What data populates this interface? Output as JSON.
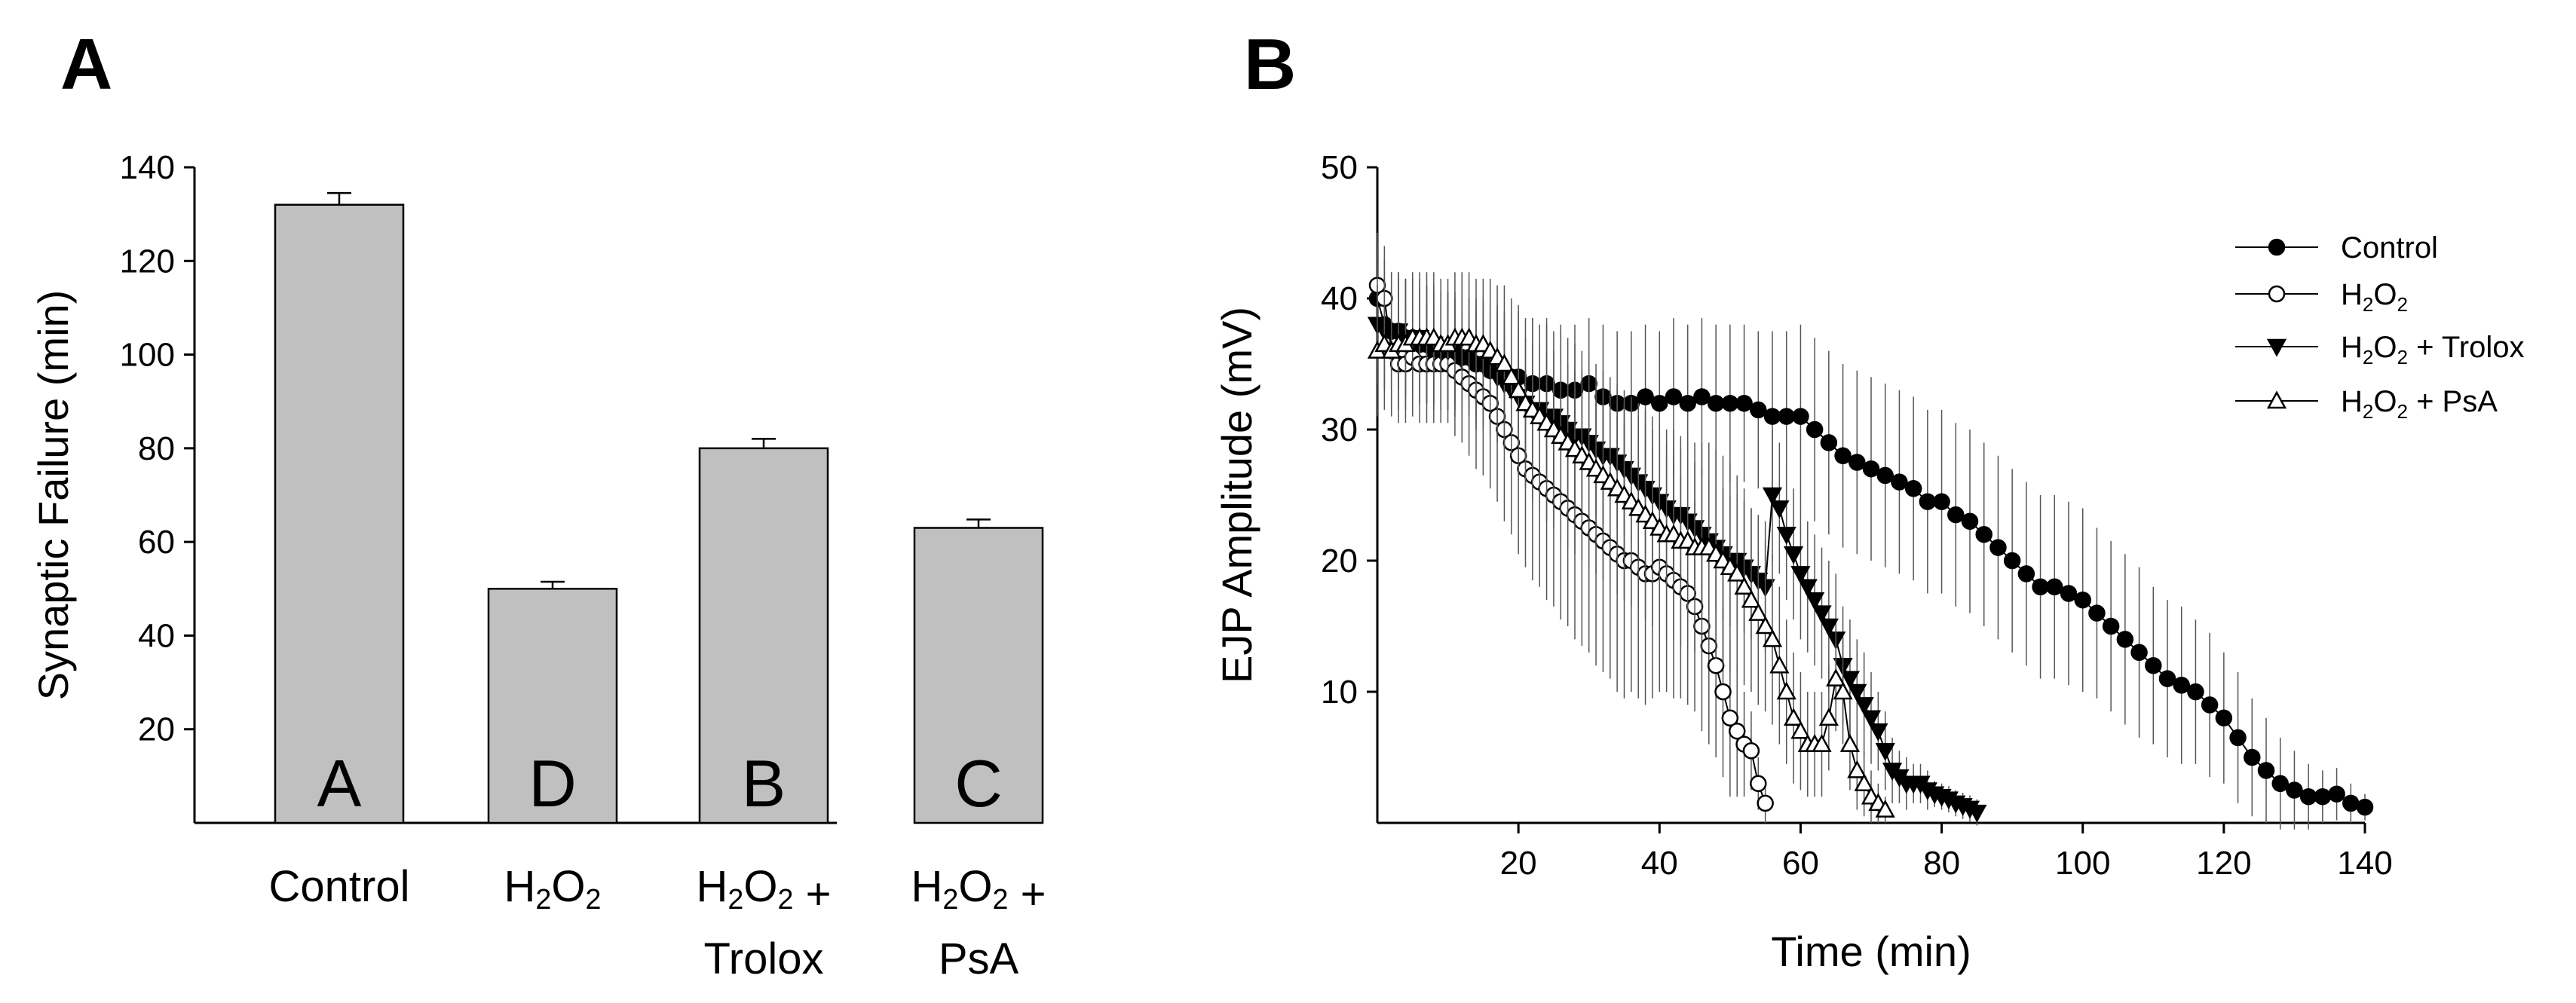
{
  "colors": {
    "bar_fill": "#c0c0c0",
    "ink": "#000000",
    "open_marker_fill": "#ffffff"
  },
  "panels": {
    "a": "A",
    "b": "B"
  },
  "chart_data": [
    {
      "type": "bar",
      "panel": "A",
      "ylabel": "Synaptic Failure (min)",
      "xlabel": "",
      "ylim": [
        0,
        140
      ],
      "yticks": [
        20,
        40,
        60,
        80,
        100,
        120,
        140
      ],
      "categories": [
        {
          "line1": "Control",
          "line2": "",
          "sig": "A",
          "value": 132,
          "error": 2.5
        },
        {
          "line1": "H2O2",
          "line2": "",
          "sig": "D",
          "value": 50,
          "error": 1.5
        },
        {
          "line1": "H2O2 +",
          "line2": "Trolox",
          "sig": "B",
          "value": 80,
          "error": 2
        },
        {
          "line1": "H2O2 +",
          "line2": "PsA",
          "sig": "C",
          "value": 63,
          "error": 1.8
        }
      ]
    },
    {
      "type": "line",
      "panel": "B",
      "xlabel": "Time (min)",
      "ylabel": "EJP Amplitude (mV)",
      "xlim": [
        0,
        140
      ],
      "ylim": [
        0,
        50
      ],
      "xticks": [
        20,
        40,
        60,
        80,
        100,
        120,
        140
      ],
      "yticks": [
        10,
        20,
        30,
        40,
        50
      ],
      "series": [
        {
          "name": "Control",
          "marker": "circle-filled",
          "x": [
            0,
            1,
            2,
            3,
            4,
            5,
            6,
            7,
            8,
            9,
            10,
            11,
            12,
            13,
            14,
            15,
            16,
            17,
            18,
            19,
            20,
            22,
            24,
            26,
            28,
            30,
            32,
            34,
            36,
            38,
            40,
            42,
            44,
            46,
            48,
            50,
            52,
            54,
            56,
            58,
            60,
            62,
            64,
            66,
            68,
            70,
            72,
            74,
            76,
            78,
            80,
            82,
            84,
            86,
            88,
            90,
            92,
            94,
            96,
            98,
            100,
            102,
            104,
            106,
            108,
            110,
            112,
            114,
            116,
            118,
            120,
            122,
            124,
            126,
            128,
            130,
            132,
            134,
            136,
            138,
            140
          ],
          "y": [
            40,
            38,
            37.5,
            37.5,
            37,
            37,
            36.5,
            36.5,
            36,
            36,
            36,
            35.5,
            35.5,
            35.5,
            35,
            35,
            34.5,
            34.5,
            34,
            34,
            34,
            33.5,
            33.5,
            33,
            33,
            33.5,
            32.5,
            32,
            32,
            32.5,
            32,
            32.5,
            32,
            32.5,
            32,
            32,
            32,
            31.5,
            31,
            31,
            31,
            30,
            29,
            28,
            27.5,
            27,
            26.5,
            26,
            25.5,
            24.5,
            24.5,
            23.5,
            23,
            22,
            21,
            20,
            19,
            18,
            18,
            17.5,
            17,
            16,
            15,
            14,
            13,
            12,
            11,
            10.5,
            10,
            9,
            8,
            6.5,
            5,
            4,
            3,
            2.5,
            2,
            2,
            2.2,
            1.5,
            1.2
          ],
          "err": [
            5,
            5,
            4.5,
            4.5,
            4.5,
            4.5,
            4.5,
            4.5,
            4.5,
            4.5,
            4.5,
            4.5,
            4.5,
            4.5,
            4.5,
            4.5,
            5,
            5,
            5,
            5,
            5,
            5,
            5,
            5,
            5,
            5,
            5.5,
            5.5,
            5.5,
            5.5,
            5.5,
            6,
            6,
            6,
            6,
            6,
            6,
            6,
            6.5,
            6.5,
            7,
            7,
            7,
            7,
            7,
            7,
            7,
            7,
            7,
            7,
            7,
            7,
            7,
            7,
            7,
            7,
            7,
            7,
            7,
            7,
            7,
            6.5,
            6.5,
            6.5,
            6.5,
            6,
            6,
            6,
            5.5,
            5.5,
            5,
            5,
            4.5,
            4,
            3.5,
            3,
            2.5,
            2,
            2,
            1.5,
            1
          ]
        },
        {
          "name": "H2O2",
          "marker": "circle-open",
          "x": [
            0,
            1,
            2,
            3,
            4,
            5,
            6,
            7,
            8,
            9,
            10,
            11,
            12,
            13,
            14,
            15,
            16,
            17,
            18,
            19,
            20,
            21,
            22,
            23,
            24,
            25,
            26,
            27,
            28,
            29,
            30,
            31,
            32,
            33,
            34,
            35,
            36,
            37,
            38,
            39,
            40,
            41,
            42,
            43,
            44,
            45,
            46,
            47,
            48,
            49,
            50,
            51,
            52,
            53,
            54,
            55
          ],
          "y": [
            41,
            40,
            36,
            35,
            35,
            35.5,
            35,
            35,
            35,
            35,
            35,
            34.5,
            34,
            33.5,
            33,
            32.5,
            32,
            31,
            30,
            29,
            28,
            27,
            26.5,
            26,
            25.5,
            25,
            24.5,
            24,
            23.5,
            23,
            22.5,
            22,
            21.5,
            21,
            20.5,
            20,
            20,
            19.5,
            19,
            19,
            19.5,
            19,
            18.5,
            18,
            17.5,
            16.5,
            15,
            13.5,
            12,
            10,
            8,
            7,
            6,
            5.5,
            3,
            1.5
          ],
          "err": [
            4,
            4,
            4.5,
            4.5,
            4.5,
            4.5,
            4.5,
            4.5,
            4.5,
            4.5,
            4.5,
            5,
            5,
            5.5,
            6,
            6,
            6.5,
            6.5,
            7,
            7,
            7.5,
            7.5,
            8,
            8,
            8.5,
            8.5,
            9,
            9,
            9.5,
            9.5,
            9.5,
            10,
            10,
            10,
            10.5,
            10.5,
            10,
            10,
            10,
            9.5,
            9.5,
            9,
            9,
            8.5,
            8.5,
            8,
            8,
            7.5,
            7,
            6.5,
            6,
            5,
            4,
            3,
            2,
            1.5
          ]
        },
        {
          "name": "H2O2 + Trolox",
          "marker": "triangle-down-filled",
          "x": [
            0,
            1,
            2,
            3,
            4,
            5,
            6,
            7,
            8,
            9,
            10,
            11,
            12,
            13,
            14,
            15,
            16,
            17,
            18,
            19,
            20,
            21,
            22,
            23,
            24,
            25,
            26,
            27,
            28,
            29,
            30,
            31,
            32,
            33,
            34,
            35,
            36,
            37,
            38,
            39,
            40,
            41,
            42,
            43,
            44,
            45,
            46,
            47,
            48,
            49,
            50,
            51,
            52,
            53,
            54,
            55,
            56,
            57,
            58,
            59,
            60,
            61,
            62,
            63,
            64,
            65,
            66,
            67,
            68,
            69,
            70,
            71,
            72,
            73,
            74,
            75,
            76,
            77,
            78,
            79,
            80,
            81,
            82,
            83,
            84,
            85
          ],
          "y": [
            38,
            37.5,
            37.5,
            37.5,
            37,
            37,
            37,
            36.5,
            36.5,
            36,
            36,
            36,
            35.5,
            35.5,
            35,
            35,
            34.5,
            34,
            33.5,
            33,
            32.5,
            32,
            31.5,
            31.5,
            31,
            31,
            30.5,
            30,
            29.5,
            29.5,
            29,
            28.5,
            28,
            28,
            27.5,
            27,
            26.5,
            26,
            25.5,
            25,
            24.5,
            24,
            23.5,
            23.5,
            23,
            22.5,
            22,
            21.5,
            21,
            20.5,
            20,
            20,
            19.5,
            19,
            18.5,
            18,
            25,
            24,
            22,
            20.5,
            19,
            18,
            17,
            16,
            15,
            14,
            12,
            11,
            10,
            9,
            8,
            7,
            5.5,
            4,
            3.5,
            3,
            3,
            3,
            2.5,
            2.2,
            2,
            1.8,
            1.5,
            1.3,
            1.1,
            0.8
          ],
          "err": [
            4.5,
            4.5,
            4.5,
            4.5,
            4.5,
            4.5,
            4.5,
            4.5,
            4.5,
            4.5,
            4.5,
            4.5,
            4.5,
            4.5,
            5,
            5,
            5,
            5,
            5,
            5,
            5,
            5,
            5,
            5,
            5,
            5,
            5,
            5,
            5,
            5,
            5,
            5,
            5,
            5,
            5,
            5,
            5,
            5,
            5,
            5,
            5,
            5,
            5,
            5,
            5,
            5,
            5,
            5,
            5,
            5,
            5,
            5,
            5,
            5,
            5,
            5,
            5,
            5,
            5,
            5,
            5,
            5,
            5,
            5,
            5,
            5,
            4.5,
            4.5,
            4,
            4,
            3.5,
            3,
            3,
            2.5,
            2,
            2,
            1.5,
            1.5,
            1.5,
            1,
            1,
            1,
            1,
            1,
            1,
            1
          ]
        },
        {
          "name": "H2O2 + PsA",
          "marker": "triangle-up-open",
          "x": [
            0,
            1,
            2,
            3,
            4,
            5,
            6,
            7,
            8,
            9,
            10,
            11,
            12,
            13,
            14,
            15,
            16,
            17,
            18,
            19,
            20,
            21,
            22,
            23,
            24,
            25,
            26,
            27,
            28,
            29,
            30,
            31,
            32,
            33,
            34,
            35,
            36,
            37,
            38,
            39,
            40,
            41,
            42,
            43,
            44,
            45,
            46,
            47,
            48,
            49,
            50,
            51,
            52,
            53,
            54,
            55,
            56,
            57,
            58,
            59,
            60,
            61,
            62,
            63,
            64,
            65,
            66,
            67,
            68,
            69,
            70,
            71,
            72
          ],
          "y": [
            36,
            36.5,
            36,
            36.5,
            36.5,
            37,
            37,
            37,
            37,
            36.5,
            36.5,
            37,
            37,
            37,
            36.5,
            36.5,
            36,
            35.5,
            35,
            34,
            33,
            32,
            31.5,
            31,
            30.5,
            30,
            29.5,
            29,
            28.5,
            28,
            27.5,
            27,
            26.5,
            26,
            25.5,
            25,
            24.5,
            24,
            23.5,
            23,
            22.5,
            22,
            22,
            21.5,
            21.5,
            21,
            21,
            21,
            20.5,
            20,
            19.5,
            19,
            18,
            17,
            16,
            15,
            14,
            12,
            10,
            8,
            7,
            6,
            6,
            6,
            8,
            11,
            10,
            6,
            4,
            3,
            2,
            1.5,
            1
          ],
          "err": [
            5,
            5,
            5,
            5,
            5,
            5,
            5,
            5,
            5,
            5,
            5,
            5,
            5,
            5,
            5,
            5,
            5.5,
            5.5,
            6,
            6,
            6.5,
            6.5,
            7,
            7,
            7.5,
            7.5,
            8,
            8,
            8,
            8,
            8,
            8,
            8,
            8,
            8,
            8,
            8,
            8,
            8,
            8,
            8,
            8,
            8,
            8,
            8,
            8,
            8,
            8,
            8,
            8,
            8,
            7.5,
            7.5,
            7,
            7,
            6.5,
            6.5,
            6,
            5.5,
            5,
            4.5,
            4,
            4,
            4,
            4,
            4,
            4,
            3.5,
            3,
            2.5,
            2,
            1.5,
            1
          ]
        }
      ],
      "legend": [
        {
          "base": "Control",
          "sub": "",
          "post": "",
          "rest": ""
        },
        {
          "base": "H",
          "sub": "2",
          "post": "O",
          "rest": ""
        },
        {
          "base": "H",
          "sub": "2",
          "post": "O",
          "rest": " + Trolox"
        },
        {
          "base": "H",
          "sub": "2",
          "post": "O",
          "rest": " + PsA"
        }
      ]
    }
  ]
}
